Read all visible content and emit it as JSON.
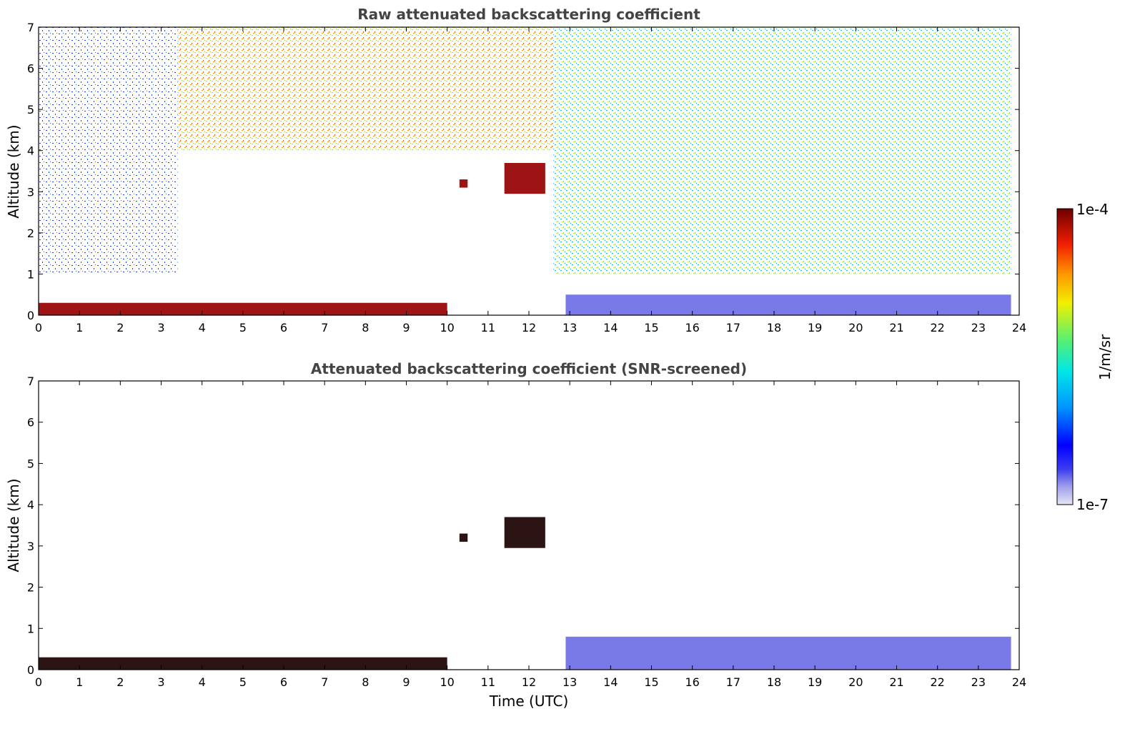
{
  "chart_data": [
    {
      "type": "heatmap",
      "title": "Raw attenuated backscattering coefficient",
      "xlabel": "",
      "ylabel": "Altitude (km)",
      "xlim": [
        0,
        24
      ],
      "ylim": [
        0,
        7
      ],
      "xticks": [
        "0",
        "1",
        "2",
        "3",
        "4",
        "5",
        "6",
        "7",
        "8",
        "9",
        "10",
        "11",
        "12",
        "13",
        "14",
        "15",
        "16",
        "17",
        "18",
        "19",
        "20",
        "21",
        "22",
        "23",
        "24"
      ],
      "yticks": [
        "0",
        "1",
        "2",
        "3",
        "4",
        "5",
        "6",
        "7"
      ],
      "features": [
        {
          "name": "surface layer (high)",
          "t": [
            0,
            10
          ],
          "z": [
            0,
            0.3
          ],
          "level": 0.95
        },
        {
          "name": "cloud",
          "t": [
            10.3,
            10.5
          ],
          "z": [
            3.1,
            3.3
          ],
          "level": 0.95
        },
        {
          "name": "cloud",
          "t": [
            11.4,
            12.4
          ],
          "z": [
            2.95,
            3.7
          ],
          "level": 0.95
        },
        {
          "name": "boundary layer (low)",
          "t": [
            12.9,
            23.8
          ],
          "z": [
            0,
            0.5
          ],
          "level": 0.15
        },
        {
          "name": "noise, low (blue)",
          "t": [
            0,
            3.4
          ],
          "z": [
            1.0,
            7.0
          ],
          "level": 0.15
        },
        {
          "name": "noise, high (yellow-red)",
          "t": [
            3.4,
            12.6
          ],
          "z": [
            4.0,
            7.0
          ],
          "level": 0.7
        },
        {
          "name": "noise, mid (cyan-yellow)",
          "t": [
            12.6,
            23.8
          ],
          "z": [
            1.0,
            7.0
          ],
          "level": 0.45
        }
      ]
    },
    {
      "type": "heatmap",
      "title": "Attenuated backscattering coefficient (SNR-screened)",
      "xlabel": "Time (UTC)",
      "ylabel": "Altitude (km)",
      "xlim": [
        0,
        24
      ],
      "ylim": [
        0,
        7
      ],
      "xticks": [
        "0",
        "1",
        "2",
        "3",
        "4",
        "5",
        "6",
        "7",
        "8",
        "9",
        "10",
        "11",
        "12",
        "13",
        "14",
        "15",
        "16",
        "17",
        "18",
        "19",
        "20",
        "21",
        "22",
        "23",
        "24"
      ],
      "yticks": [
        "0",
        "1",
        "2",
        "3",
        "4",
        "5",
        "6",
        "7"
      ],
      "features": [
        {
          "name": "surface layer (saturated)",
          "t": [
            0,
            10
          ],
          "z": [
            0,
            0.3
          ],
          "level": 1.0
        },
        {
          "name": "cloud",
          "t": [
            10.3,
            10.5
          ],
          "z": [
            3.1,
            3.3
          ],
          "level": 1.0
        },
        {
          "name": "cloud",
          "t": [
            11.4,
            12.4
          ],
          "z": [
            2.95,
            3.7
          ],
          "level": 1.0
        },
        {
          "name": "boundary layer (low)",
          "t": [
            12.9,
            23.8
          ],
          "z": [
            0,
            0.8
          ],
          "level": 0.15
        }
      ]
    }
  ],
  "colorbar": {
    "max_label": "1e-4",
    "min_label": "1e-7",
    "unit": "1/m/sr",
    "colors": [
      "#e6e6f5",
      "#c8c8f0",
      "#a0a0eb",
      "#6e6ee6",
      "#0000ff",
      "#0046ff",
      "#008cff",
      "#00c8ff",
      "#00e6c8",
      "#3cf08c",
      "#96f050",
      "#dcf014",
      "#ffd200",
      "#ff8c00",
      "#ff3c00",
      "#dc0000",
      "#960000",
      "#6e0000"
    ]
  }
}
